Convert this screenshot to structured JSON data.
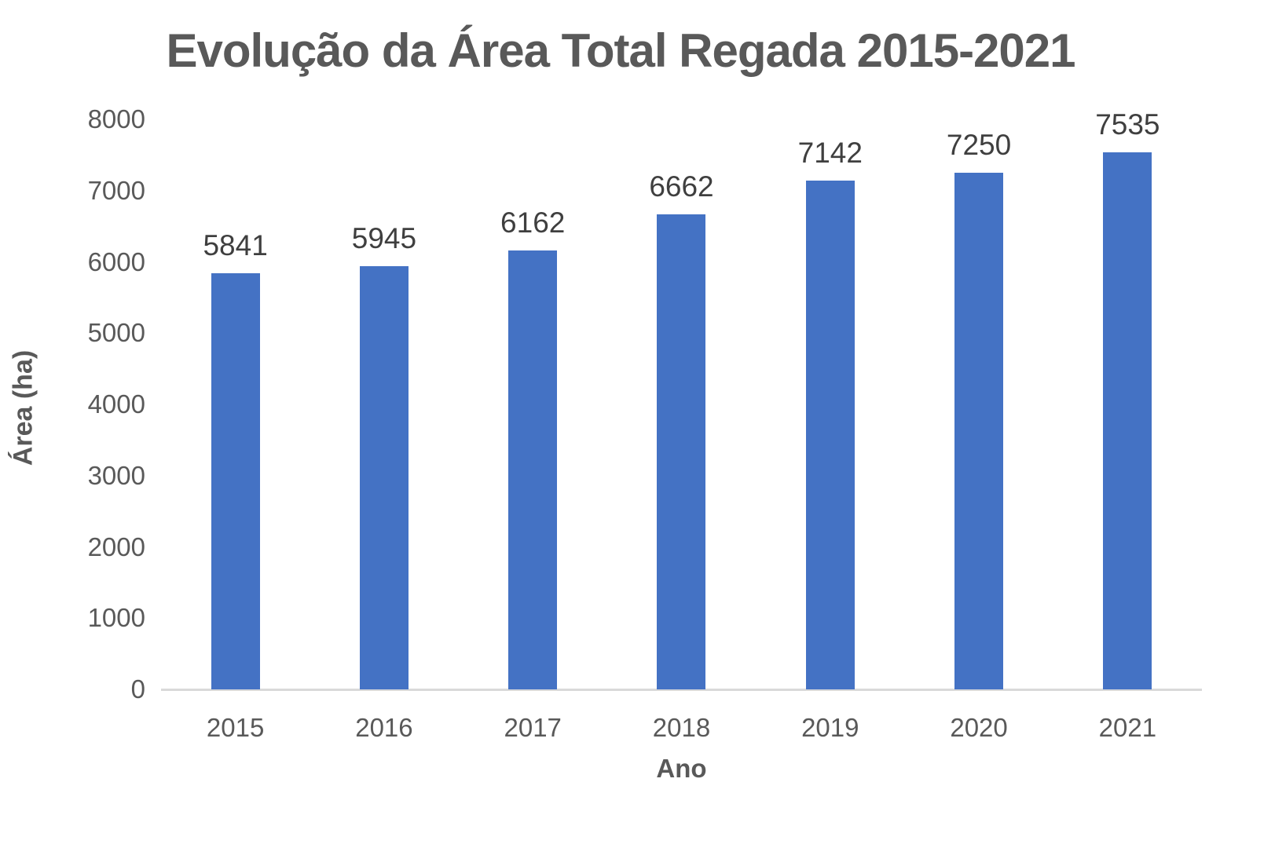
{
  "chart": {
    "title": "Evolução da Área Total Regada 2015-2021",
    "xlabel": "Ano",
    "ylabel": "Área (ha)"
  },
  "chart_data": {
    "type": "bar",
    "title": "Evolução da Área Total Regada 2015-2021",
    "xlabel": "Ano",
    "ylabel": "Área (ha)",
    "categories": [
      "2015",
      "2016",
      "2017",
      "2018",
      "2019",
      "2020",
      "2021"
    ],
    "values": [
      5841,
      5945,
      6162,
      6662,
      7142,
      7250,
      7535
    ],
    "data_labels": [
      "5841",
      "5945",
      "6162",
      "6662",
      "7142",
      "7250",
      "7535"
    ],
    "ylim": [
      0,
      8000
    ],
    "ytick_step": 1000,
    "ytick_labels": [
      "0",
      "1000",
      "2000",
      "3000",
      "4000",
      "5000",
      "6000",
      "7000",
      "8000"
    ],
    "grid": false,
    "legend": "none",
    "colors": {
      "bar": "#4472C4",
      "title_text": "#595959",
      "axis_tick_text": "#595959",
      "axis_title_text": "#595959",
      "data_label_text": "#3F3F3F",
      "axis_line": "#D9D9D9",
      "background": "#FFFFFF"
    }
  }
}
